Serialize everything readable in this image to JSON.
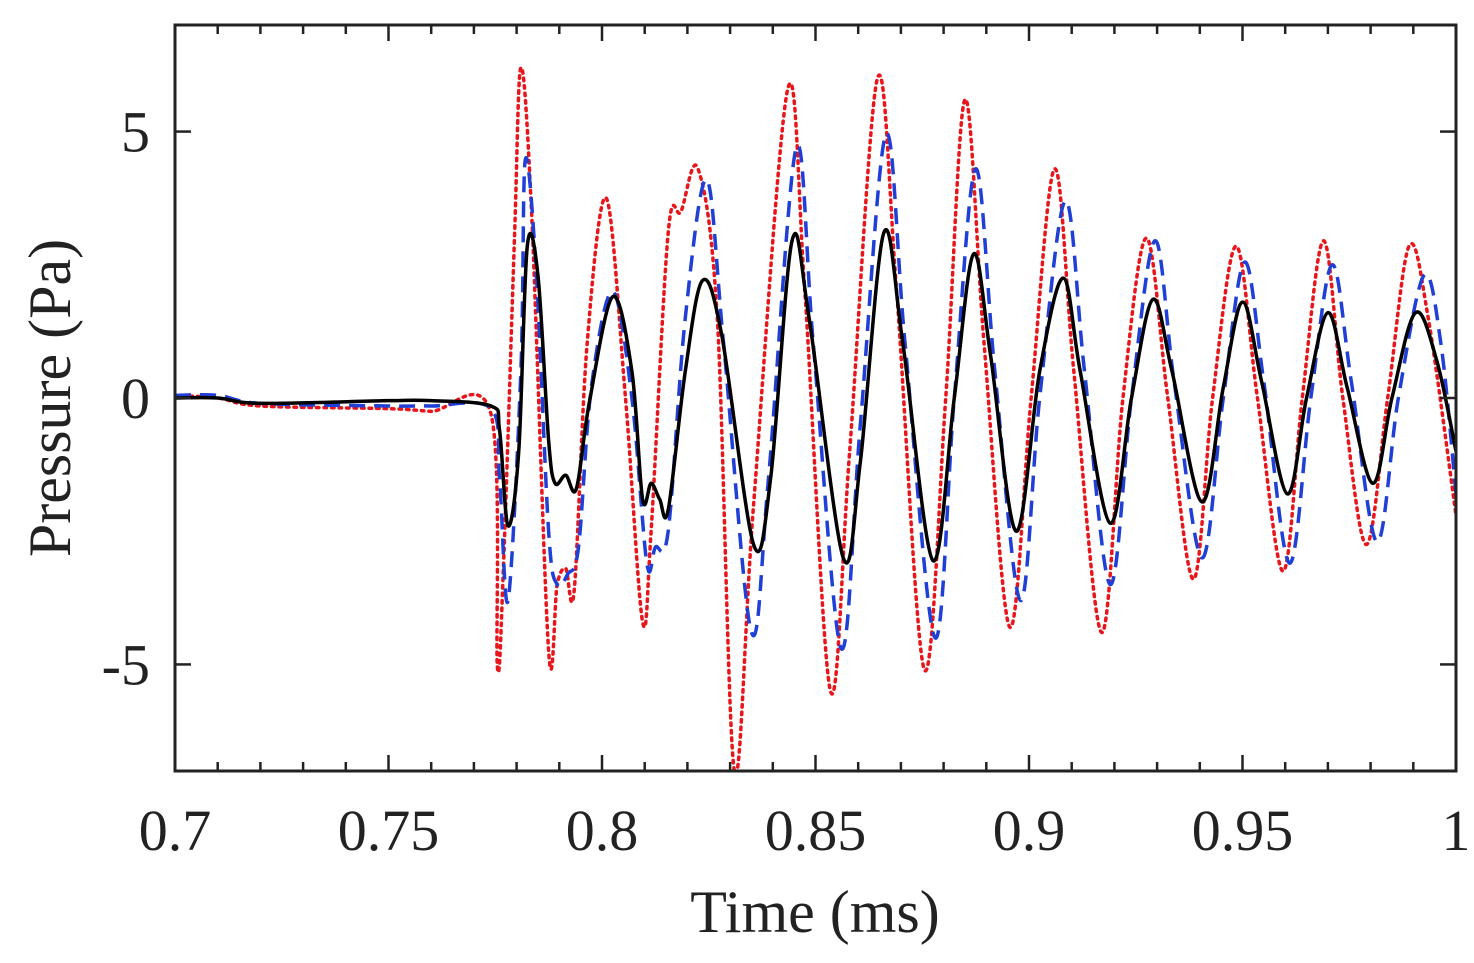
{
  "chart_data": {
    "type": "line",
    "title": "",
    "xlabel": "Time (ms)",
    "ylabel": "Pressure (Pa)",
    "xlim": [
      0.7,
      1.0
    ],
    "ylim": [
      -7,
      7
    ],
    "xticks": [
      0.7,
      0.75,
      0.8,
      0.85,
      0.9,
      0.95,
      1.0
    ],
    "xtick_labels": [
      "0.7",
      "0.75",
      "0.8",
      "0.85",
      "0.9",
      "0.95",
      "1"
    ],
    "yticks": [
      -5,
      0,
      5
    ],
    "ytick_labels": [
      "-5",
      "0",
      "5"
    ],
    "grid": false,
    "legend": "none",
    "series": [
      {
        "name": "solid",
        "color": "#000000",
        "style": "solid",
        "points": [
          [
            0.7,
            0.0
          ],
          [
            0.71,
            0.0
          ],
          [
            0.72,
            -0.1
          ],
          [
            0.75,
            -0.05
          ],
          [
            0.76,
            -0.05
          ],
          [
            0.774,
            -0.15
          ],
          [
            0.776,
            -0.6
          ],
          [
            0.778,
            -2.4
          ],
          [
            0.7805,
            -1.0
          ],
          [
            0.7825,
            2.85
          ],
          [
            0.785,
            2.3
          ],
          [
            0.7875,
            -0.8
          ],
          [
            0.789,
            -1.6
          ],
          [
            0.7915,
            -1.45
          ],
          [
            0.794,
            -1.7
          ],
          [
            0.797,
            -0.1
          ],
          [
            0.8025,
            1.9
          ],
          [
            0.807,
            0.5
          ],
          [
            0.8095,
            -1.9
          ],
          [
            0.8115,
            -1.6
          ],
          [
            0.8135,
            -1.9
          ],
          [
            0.8155,
            -2.1
          ],
          [
            0.8195,
            0.5
          ],
          [
            0.8235,
            2.2
          ],
          [
            0.828,
            1.2
          ],
          [
            0.8355,
            -2.75
          ],
          [
            0.8395,
            -1.5
          ],
          [
            0.8445,
            2.95
          ],
          [
            0.8485,
            1.5
          ],
          [
            0.8565,
            -3.0
          ],
          [
            0.8605,
            -1.2
          ],
          [
            0.866,
            3.1
          ],
          [
            0.8705,
            1.0
          ],
          [
            0.8775,
            -3.05
          ],
          [
            0.8825,
            0.0
          ],
          [
            0.887,
            2.7
          ],
          [
            0.891,
            0.8
          ],
          [
            0.897,
            -2.5
          ],
          [
            0.9025,
            0.5
          ],
          [
            0.908,
            2.25
          ],
          [
            0.912,
            0.5
          ],
          [
            0.919,
            -2.35
          ],
          [
            0.924,
            0.0
          ],
          [
            0.929,
            1.85
          ],
          [
            0.9335,
            0.5
          ],
          [
            0.9405,
            -1.95
          ],
          [
            0.9455,
            0.2
          ],
          [
            0.95,
            1.8
          ],
          [
            0.9545,
            0.3
          ],
          [
            0.9605,
            -1.8
          ],
          [
            0.965,
            0.0
          ],
          [
            0.97,
            1.6
          ],
          [
            0.9745,
            0.2
          ],
          [
            0.9805,
            -1.6
          ],
          [
            0.985,
            0.0
          ],
          [
            0.9905,
            1.6
          ],
          [
            0.9955,
            0.7
          ],
          [
            1.0,
            -1.0
          ]
        ]
      },
      {
        "name": "dashed",
        "color": "#1f3fd6",
        "style": "dashed",
        "points": [
          [
            0.7,
            0.05
          ],
          [
            0.71,
            0.05
          ],
          [
            0.72,
            -0.1
          ],
          [
            0.75,
            -0.15
          ],
          [
            0.76,
            -0.15
          ],
          [
            0.774,
            -0.2
          ],
          [
            0.776,
            -1.5
          ],
          [
            0.778,
            -3.8
          ],
          [
            0.781,
            0.5
          ],
          [
            0.782,
            4.45
          ],
          [
            0.7845,
            2.5
          ],
          [
            0.7875,
            -2.5
          ],
          [
            0.7895,
            -3.5
          ],
          [
            0.792,
            -3.3
          ],
          [
            0.7945,
            -2.8
          ],
          [
            0.7975,
            0.2
          ],
          [
            0.8025,
            2.0
          ],
          [
            0.807,
            0.0
          ],
          [
            0.8105,
            -3.1
          ],
          [
            0.8125,
            -2.8
          ],
          [
            0.8155,
            -2.5
          ],
          [
            0.8195,
            1.5
          ],
          [
            0.8245,
            4.1
          ],
          [
            0.8285,
            1.0
          ],
          [
            0.835,
            -4.4
          ],
          [
            0.839,
            -1.5
          ],
          [
            0.8455,
            4.7
          ],
          [
            0.8495,
            1.0
          ],
          [
            0.856,
            -4.7
          ],
          [
            0.8605,
            -0.5
          ],
          [
            0.8665,
            4.95
          ],
          [
            0.871,
            1.0
          ],
          [
            0.878,
            -4.5
          ],
          [
            0.8825,
            0.0
          ],
          [
            0.8875,
            4.3
          ],
          [
            0.892,
            0.5
          ],
          [
            0.898,
            -3.8
          ],
          [
            0.9025,
            0.0
          ],
          [
            0.9085,
            3.7
          ],
          [
            0.913,
            0.5
          ],
          [
            0.919,
            -3.5
          ],
          [
            0.924,
            0.0
          ],
          [
            0.9295,
            2.95
          ],
          [
            0.934,
            0.3
          ],
          [
            0.9405,
            -3.0
          ],
          [
            0.9455,
            0.0
          ],
          [
            0.9505,
            2.55
          ],
          [
            0.955,
            0.3
          ],
          [
            0.961,
            -3.1
          ],
          [
            0.966,
            0.0
          ],
          [
            0.971,
            2.5
          ],
          [
            0.9755,
            0.3
          ],
          [
            0.9815,
            -2.7
          ],
          [
            0.9865,
            0.0
          ],
          [
            0.9925,
            2.3
          ],
          [
            0.9965,
            1.0
          ],
          [
            1.0,
            -1.8
          ]
        ]
      },
      {
        "name": "dotted",
        "color": "#e8161b",
        "style": "dotted",
        "points": [
          [
            0.7,
            0.05
          ],
          [
            0.71,
            0.0
          ],
          [
            0.72,
            -0.15
          ],
          [
            0.75,
            -0.2
          ],
          [
            0.76,
            -0.25
          ],
          [
            0.774,
            -0.3
          ],
          [
            0.7755,
            -5.05
          ],
          [
            0.777,
            -3.0
          ],
          [
            0.7795,
            3.0
          ],
          [
            0.781,
            6.2
          ],
          [
            0.7835,
            3.5
          ],
          [
            0.7875,
            -4.75
          ],
          [
            0.7895,
            -3.5
          ],
          [
            0.7915,
            -3.2
          ],
          [
            0.7935,
            -3.6
          ],
          [
            0.7965,
            1.0
          ],
          [
            0.801,
            3.75
          ],
          [
            0.8055,
            0.0
          ],
          [
            0.8095,
            -4.2
          ],
          [
            0.8115,
            -2.5
          ],
          [
            0.8155,
            3.1
          ],
          [
            0.8185,
            3.5
          ],
          [
            0.8225,
            4.3
          ],
          [
            0.827,
            1.5
          ],
          [
            0.831,
            -7.0
          ],
          [
            0.8355,
            -2.0
          ],
          [
            0.8435,
            5.8
          ],
          [
            0.8475,
            2.0
          ],
          [
            0.8535,
            -5.5
          ],
          [
            0.858,
            -1.0
          ],
          [
            0.8645,
            6.0
          ],
          [
            0.869,
            2.0
          ],
          [
            0.8755,
            -5.1
          ],
          [
            0.8805,
            0.0
          ],
          [
            0.885,
            5.6
          ],
          [
            0.8895,
            1.0
          ],
          [
            0.8955,
            -4.3
          ],
          [
            0.9005,
            0.0
          ],
          [
            0.906,
            4.3
          ],
          [
            0.9105,
            0.5
          ],
          [
            0.917,
            -4.4
          ],
          [
            0.922,
            0.0
          ],
          [
            0.9275,
            3.0
          ],
          [
            0.9325,
            0.0
          ],
          [
            0.9385,
            -3.4
          ],
          [
            0.943,
            0.0
          ],
          [
            0.9485,
            2.85
          ],
          [
            0.9535,
            0.0
          ],
          [
            0.9595,
            -3.25
          ],
          [
            0.964,
            0.0
          ],
          [
            0.969,
            2.95
          ],
          [
            0.9735,
            0.0
          ],
          [
            0.979,
            -2.75
          ],
          [
            0.984,
            0.0
          ],
          [
            0.989,
            2.85
          ],
          [
            0.9935,
            1.5
          ],
          [
            1.0,
            -2.2
          ]
        ]
      }
    ]
  }
}
